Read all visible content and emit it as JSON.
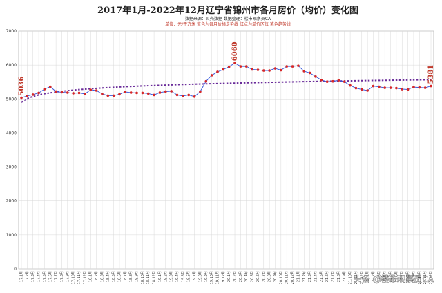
{
  "chart_data": {
    "type": "line",
    "title": "2017年1月-2022年12月辽宁省锦州市各月房价（均价）变化图",
    "subtitle_source": "数据来源：贝壳数据    数据整理：楼市观察员CA",
    "subtitle_legend": "单位：元/平方米    蓝色为各月价格走势线    红点为单价区位    紫色趋势线",
    "ylim": [
      0,
      7000
    ],
    "yticks": [
      0,
      1000,
      2000,
      3000,
      4000,
      5000,
      6000,
      7000
    ],
    "grid": true,
    "x": [
      "17.1月",
      "17.2月",
      "17.3月",
      "17.4月",
      "17.5月",
      "17.6月",
      "17.7月",
      "17.8月",
      "17.9月",
      "17.10月",
      "17.11月",
      "17.12月",
      "18.1月",
      "18.2月",
      "18.3月",
      "18.4月",
      "18.5月",
      "18.6月",
      "18.7月",
      "18.8月",
      "18.9月",
      "18.10月",
      "18.11月",
      "18.12月",
      "19.1月",
      "19.2月",
      "19.3月",
      "19.4月",
      "19.5月",
      "19.6月",
      "19.7月",
      "19.8月",
      "19.9月",
      "19.10月",
      "19.11月",
      "19.12月",
      "20.1月",
      "20.2月",
      "20.3月",
      "20.4月",
      "20.5月",
      "20.6月",
      "20.7月",
      "20.8月",
      "20.9月",
      "20.10月",
      "20.11月",
      "20.12月",
      "21.1月",
      "21.2月",
      "21.3月",
      "21.4月",
      "21.5月",
      "21.6月",
      "21.7月",
      "21.8月",
      "21.9月",
      "21.10月",
      "21.11月",
      "21.12月",
      "22.1月",
      "22.2月",
      "22.3月",
      "22.4月",
      "22.5月",
      "22.6月",
      "22.7月",
      "22.8月",
      "22.9月",
      "22.10月",
      "22.11月",
      "22.12月"
    ],
    "series": [
      {
        "values": [
          5036,
          5090,
          5130,
          5180,
          5290,
          5360,
          5220,
          5200,
          5190,
          5170,
          5180,
          5150,
          5270,
          5250,
          5150,
          5100,
          5100,
          5140,
          5210,
          5190,
          5180,
          5180,
          5160,
          5120,
          5190,
          5220,
          5230,
          5120,
          5090,
          5120,
          5070,
          5220,
          5520,
          5700,
          5800,
          5870,
          5950,
          6060,
          5960,
          5960,
          5870,
          5860,
          5840,
          5840,
          5900,
          5850,
          5960,
          5960,
          5980,
          5820,
          5770,
          5660,
          5560,
          5510,
          5520,
          5550,
          5510,
          5400,
          5320,
          5280,
          5250,
          5380,
          5360,
          5330,
          5330,
          5320,
          5290,
          5280,
          5350,
          5340,
          5330,
          5381
        ],
        "color": "#3b5bdb",
        "point_color": "#d62728"
      }
    ],
    "trend": {
      "color": "#6a2c9a"
    },
    "annotations": [
      {
        "label": "5036",
        "index": 0
      },
      {
        "label": "6060",
        "index": 37
      },
      {
        "label": "5381",
        "index": 71
      }
    ],
    "watermark": "头条 @楼市观察员CA"
  }
}
